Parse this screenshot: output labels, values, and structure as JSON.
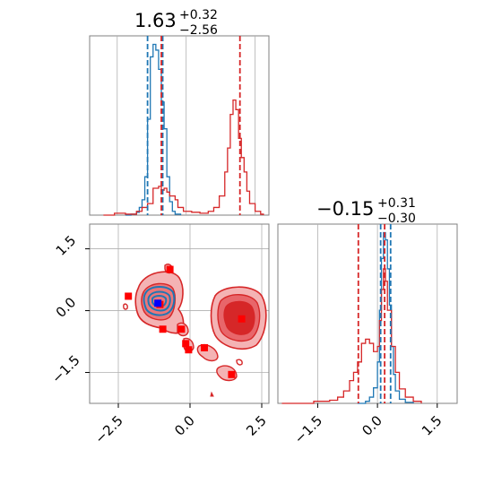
{
  "colors": {
    "blue": "#1f77b4",
    "red": "#d62728",
    "red_fill_light": "#f4b3b4",
    "red_fill_mid": "#e8666a",
    "red_fill_dark": "#d62728",
    "grid": "#b0b0b0",
    "marker_red": "#ff0000",
    "marker_blue": "#0000ff"
  },
  "chart_data": [
    {
      "type": "histogram",
      "panel": "top-left",
      "title": {
        "median": "1.63",
        "plus": "+0.32",
        "minus": "−2.56"
      },
      "xlim": [
        -3.5,
        3.0
      ],
      "grid": true,
      "series": [
        {
          "name": "",
          "color": "#1f77b4",
          "bins": [
            [
              -2.2,
              0
            ],
            [
              -2.0,
              1
            ],
            [
              -1.8,
              3
            ],
            [
              -1.7,
              8
            ],
            [
              -1.6,
              16
            ],
            [
              -1.5,
              40
            ],
            [
              -1.4,
              100
            ],
            [
              -1.3,
              165
            ],
            [
              -1.2,
              178
            ],
            [
              -1.1,
              172
            ],
            [
              -1.0,
              152
            ],
            [
              -0.9,
              118
            ],
            [
              -0.8,
              90
            ],
            [
              -0.7,
              40
            ],
            [
              -0.6,
              14
            ],
            [
              -0.5,
              4
            ],
            [
              -0.4,
              1
            ],
            [
              -0.2,
              0
            ]
          ]
        },
        {
          "name": "",
          "color": "#d62728",
          "bins": [
            [
              -3.0,
              0
            ],
            [
              -2.6,
              2
            ],
            [
              -2.2,
              1
            ],
            [
              -1.8,
              4
            ],
            [
              -1.6,
              8
            ],
            [
              -1.4,
              12
            ],
            [
              -1.2,
              28
            ],
            [
              -1.1,
              28
            ],
            [
              -1.0,
              30
            ],
            [
              -0.9,
              26
            ],
            [
              -0.8,
              28
            ],
            [
              -0.7,
              24
            ],
            [
              -0.6,
              20
            ],
            [
              -0.4,
              16
            ],
            [
              -0.3,
              8
            ],
            [
              -0.1,
              4
            ],
            [
              0.2,
              3
            ],
            [
              0.5,
              2
            ],
            [
              0.8,
              4
            ],
            [
              1.0,
              8
            ],
            [
              1.2,
              20
            ],
            [
              1.4,
              45
            ],
            [
              1.5,
              70
            ],
            [
              1.6,
              105
            ],
            [
              1.7,
              120
            ],
            [
              1.8,
              110
            ],
            [
              1.9,
              80
            ],
            [
              2.0,
              60
            ],
            [
              2.1,
              45
            ],
            [
              2.2,
              25
            ],
            [
              2.3,
              12
            ],
            [
              2.5,
              4
            ],
            [
              2.7,
              1
            ],
            [
              2.8,
              0
            ]
          ]
        }
      ],
      "quantile_lines": [
        {
          "color": "#1f77b4",
          "x": -1.4
        },
        {
          "color": "#1f77b4",
          "x": -0.85
        },
        {
          "color": "#d62728",
          "x": -0.9
        },
        {
          "color": "#d62728",
          "x": 1.95
        }
      ]
    },
    {
      "type": "contour",
      "panel": "bottom-left",
      "xlim": [
        -3.5,
        2.75
      ],
      "ylim": [
        -2.25,
        2.1
      ],
      "grid": true,
      "x_ticks": [
        "−2.5",
        "0.0",
        "2.5"
      ],
      "y_ticks": [
        "1.5",
        "0.0",
        "−1.5"
      ],
      "x_tick_values": [
        -2.5,
        0.0,
        2.5
      ],
      "y_tick_values": [
        1.5,
        0.0,
        -1.5
      ],
      "red_markers": [
        [
          -2.15,
          0.35
        ],
        [
          -0.7,
          1.0
        ],
        [
          -1.05,
          0.15
        ],
        [
          -0.95,
          -0.45
        ],
        [
          -0.3,
          -0.45
        ],
        [
          -0.15,
          -0.8
        ],
        [
          -0.05,
          -0.95
        ],
        [
          0.5,
          -0.9
        ],
        [
          1.45,
          -1.55
        ],
        [
          1.8,
          -0.2
        ]
      ],
      "blue_marker": [
        -1.12,
        0.18
      ]
    },
    {
      "type": "histogram",
      "panel": "bottom-right",
      "title": {
        "median": "−0.15",
        "plus": "+0.31",
        "minus": "−0.30"
      },
      "xlim": [
        -2.5,
        2.0
      ],
      "grid": true,
      "x_ticks": [
        "−1.5",
        "0.0",
        "1.5"
      ],
      "x_tick_values": [
        -1.5,
        0.0,
        1.5
      ],
      "series": [
        {
          "name": "",
          "color": "#1f77b4",
          "bins": [
            [
              -0.5,
              0
            ],
            [
              -0.3,
              2
            ],
            [
              -0.2,
              6
            ],
            [
              -0.1,
              15
            ],
            [
              0.0,
              40
            ],
            [
              0.05,
              90
            ],
            [
              0.1,
              140
            ],
            [
              0.15,
              165
            ],
            [
              0.2,
              158
            ],
            [
              0.25,
              130
            ],
            [
              0.3,
              95
            ],
            [
              0.35,
              55
            ],
            [
              0.4,
              28
            ],
            [
              0.45,
              12
            ],
            [
              0.55,
              4
            ],
            [
              0.7,
              1
            ],
            [
              0.9,
              0
            ]
          ]
        },
        {
          "name": "",
          "color": "#d62728",
          "bins": [
            [
              -2.4,
              0
            ],
            [
              -1.6,
              2
            ],
            [
              -1.2,
              3
            ],
            [
              -1.0,
              6
            ],
            [
              -0.85,
              12
            ],
            [
              -0.7,
              22
            ],
            [
              -0.6,
              30
            ],
            [
              -0.5,
              40
            ],
            [
              -0.4,
              58
            ],
            [
              -0.3,
              62
            ],
            [
              -0.2,
              58
            ],
            [
              -0.1,
              50
            ],
            [
              0.0,
              55
            ],
            [
              0.05,
              80
            ],
            [
              0.1,
              110
            ],
            [
              0.15,
              130
            ],
            [
              0.2,
              118
            ],
            [
              0.25,
              90
            ],
            [
              0.35,
              55
            ],
            [
              0.45,
              30
            ],
            [
              0.55,
              14
            ],
            [
              0.7,
              6
            ],
            [
              0.9,
              2
            ],
            [
              1.1,
              0
            ]
          ]
        }
      ],
      "quantile_lines": [
        {
          "color": "#1f77b4",
          "x": 0.08
        },
        {
          "color": "#1f77b4",
          "x": 0.33
        },
        {
          "color": "#d62728",
          "x": -0.48
        },
        {
          "color": "#d62728",
          "x": 0.18
        }
      ]
    }
  ]
}
